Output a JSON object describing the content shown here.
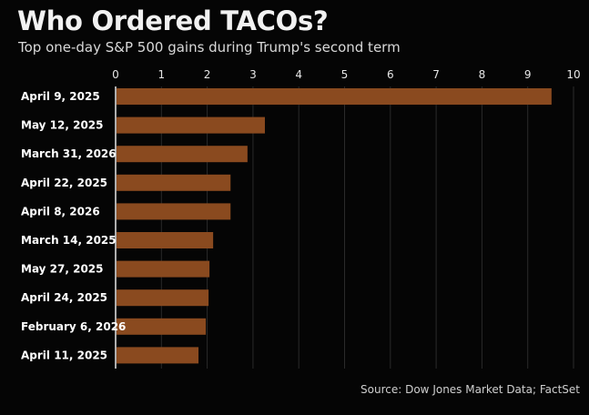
{
  "chart_data": {
    "type": "bar",
    "orientation": "horizontal",
    "title": "Who Ordered TACOs?",
    "subtitle": "Top one-day S&P 500 gains during Trump's second term",
    "categories": [
      "April 9, 2025",
      "May 12, 2025",
      "March 31, 2026",
      "April 22, 2025",
      "April 8, 2026",
      "March 14, 2025",
      "May 27, 2025",
      "April 24, 2025",
      "February 6, 2026",
      "April 11, 2025"
    ],
    "values": [
      9.52,
      3.26,
      2.88,
      2.51,
      2.51,
      2.13,
      2.05,
      2.03,
      1.97,
      1.81
    ],
    "xlim": [
      0,
      10
    ],
    "xticks": [
      "0",
      "1",
      "2",
      "3",
      "4",
      "5",
      "6",
      "7",
      "8",
      "9",
      "10"
    ],
    "xlabel": "",
    "ylabel": "",
    "grid": true,
    "bar_color": "#8a4a1f",
    "source": "Source: Dow Jones Market Data; FactSet"
  }
}
